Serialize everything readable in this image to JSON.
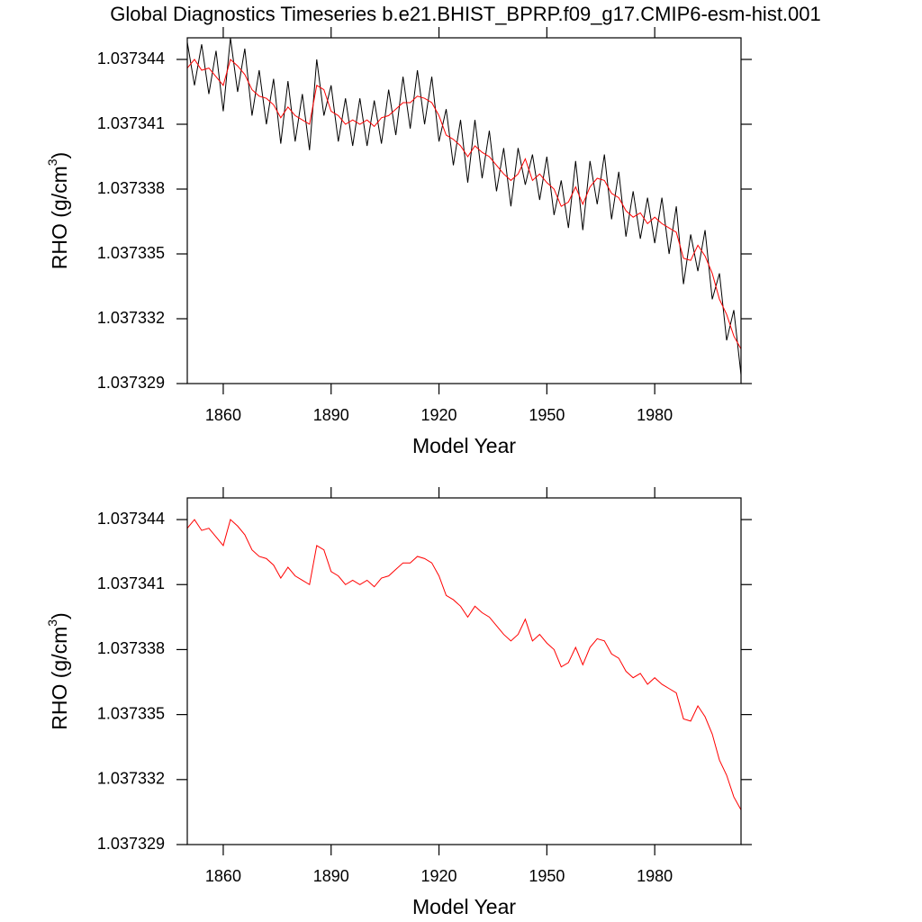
{
  "chart_data": [
    {
      "type": "line",
      "title": "Global Diagnostics Timeseries b.e21.BHIST_BPRP.f09_g17.CMIP6-esm-hist.001",
      "xlabel": "Model Year",
      "ylabel": [
        "RHO (g/cm",
        "3",
        ")"
      ],
      "xlim": [
        1850,
        2004
      ],
      "ylim": [
        1.037329,
        1.037345
      ],
      "xticks": [
        1860,
        1890,
        1920,
        1950,
        1980
      ],
      "yticks": [
        1.037329,
        1.037332,
        1.037335,
        1.037338,
        1.037341,
        1.037344
      ],
      "x": [
        1850,
        1852,
        1854,
        1856,
        1858,
        1860,
        1862,
        1864,
        1866,
        1868,
        1870,
        1872,
        1874,
        1876,
        1878,
        1880,
        1882,
        1884,
        1886,
        1888,
        1890,
        1892,
        1894,
        1896,
        1898,
        1900,
        1902,
        1904,
        1906,
        1908,
        1910,
        1912,
        1914,
        1916,
        1918,
        1920,
        1922,
        1924,
        1926,
        1928,
        1930,
        1932,
        1934,
        1936,
        1938,
        1940,
        1942,
        1944,
        1946,
        1948,
        1950,
        1952,
        1954,
        1956,
        1958,
        1960,
        1962,
        1964,
        1966,
        1968,
        1970,
        1972,
        1974,
        1976,
        1978,
        1980,
        1982,
        1984,
        1986,
        1988,
        1990,
        1992,
        1994,
        1996,
        1998,
        2000,
        2002,
        2004
      ],
      "series": [
        {
          "color": "#000000",
          "values": [
            1.0373448,
            1.0373428,
            1.0373447,
            1.0373424,
            1.0373444,
            1.0373416,
            1.037345,
            1.0373425,
            1.0373445,
            1.0373414,
            1.0373435,
            1.037341,
            1.0373431,
            1.0373401,
            1.037343,
            1.0373402,
            1.0373424,
            1.0373398,
            1.037344,
            1.0373414,
            1.0373428,
            1.0373402,
            1.0373422,
            1.03734,
            1.0373422,
            1.03734,
            1.0373421,
            1.0373401,
            1.0373426,
            1.0373405,
            1.0373432,
            1.0373408,
            1.0373435,
            1.037341,
            1.0373432,
            1.0373402,
            1.0373417,
            1.0373391,
            1.0373412,
            1.0373383,
            1.0373412,
            1.0373385,
            1.0373407,
            1.0373379,
            1.0373399,
            1.0373372,
            1.0373399,
            1.0373382,
            1.0373396,
            1.0373375,
            1.0373395,
            1.0373368,
            1.0373384,
            1.0373362,
            1.0373393,
            1.0373361,
            1.0373393,
            1.0373373,
            1.0373396,
            1.0373366,
            1.0373388,
            1.0373358,
            1.0373379,
            1.0373357,
            1.0373376,
            1.0373355,
            1.0373376,
            1.037335,
            1.0373372,
            1.0373336,
            1.0373359,
            1.0373342,
            1.0373361,
            1.0373329,
            1.0373341,
            1.037331,
            1.0373324,
            1.0373294
          ]
        },
        {
          "color": "#ff0000",
          "values": [
            1.0373436,
            1.037344,
            1.0373435,
            1.0373436,
            1.0373432,
            1.0373428,
            1.037344,
            1.0373437,
            1.0373433,
            1.0373426,
            1.0373423,
            1.0373422,
            1.0373419,
            1.0373413,
            1.0373418,
            1.0373414,
            1.0373412,
            1.037341,
            1.0373428,
            1.0373426,
            1.0373416,
            1.0373414,
            1.037341,
            1.0373412,
            1.037341,
            1.0373412,
            1.0373409,
            1.0373413,
            1.0373414,
            1.0373417,
            1.037342,
            1.037342,
            1.0373423,
            1.0373422,
            1.037342,
            1.0373414,
            1.0373405,
            1.0373403,
            1.03734,
            1.0373395,
            1.03734,
            1.0373397,
            1.0373395,
            1.0373391,
            1.0373387,
            1.0373384,
            1.0373387,
            1.0373394,
            1.0373384,
            1.0373387,
            1.0373383,
            1.037338,
            1.0373372,
            1.0373374,
            1.0373381,
            1.0373373,
            1.0373381,
            1.0373385,
            1.0373384,
            1.0373378,
            1.0373376,
            1.037337,
            1.0373367,
            1.0373369,
            1.0373364,
            1.0373367,
            1.0373364,
            1.0373362,
            1.037336,
            1.0373348,
            1.0373347,
            1.0373354,
            1.0373349,
            1.0373341,
            1.0373329,
            1.0373322,
            1.0373312,
            1.0373306
          ]
        }
      ]
    },
    {
      "type": "line",
      "xlabel": "Model Year",
      "ylabel": [
        "RHO (g/cm",
        "3",
        ")"
      ],
      "xlim": [
        1850,
        2004
      ],
      "ylim": [
        1.037329,
        1.037345
      ],
      "xticks": [
        1860,
        1890,
        1920,
        1950,
        1980
      ],
      "yticks": [
        1.037329,
        1.037332,
        1.037335,
        1.037338,
        1.037341,
        1.037344
      ],
      "x": [
        1850,
        1852,
        1854,
        1856,
        1858,
        1860,
        1862,
        1864,
        1866,
        1868,
        1870,
        1872,
        1874,
        1876,
        1878,
        1880,
        1882,
        1884,
        1886,
        1888,
        1890,
        1892,
        1894,
        1896,
        1898,
        1900,
        1902,
        1904,
        1906,
        1908,
        1910,
        1912,
        1914,
        1916,
        1918,
        1920,
        1922,
        1924,
        1926,
        1928,
        1930,
        1932,
        1934,
        1936,
        1938,
        1940,
        1942,
        1944,
        1946,
        1948,
        1950,
        1952,
        1954,
        1956,
        1958,
        1960,
        1962,
        1964,
        1966,
        1968,
        1970,
        1972,
        1974,
        1976,
        1978,
        1980,
        1982,
        1984,
        1986,
        1988,
        1990,
        1992,
        1994,
        1996,
        1998,
        2000,
        2002,
        2004
      ],
      "series": [
        {
          "color": "#ff0000",
          "values": [
            1.0373436,
            1.037344,
            1.0373435,
            1.0373436,
            1.0373432,
            1.0373428,
            1.037344,
            1.0373437,
            1.0373433,
            1.0373426,
            1.0373423,
            1.0373422,
            1.0373419,
            1.0373413,
            1.0373418,
            1.0373414,
            1.0373412,
            1.037341,
            1.0373428,
            1.0373426,
            1.0373416,
            1.0373414,
            1.037341,
            1.0373412,
            1.037341,
            1.0373412,
            1.0373409,
            1.0373413,
            1.0373414,
            1.0373417,
            1.037342,
            1.037342,
            1.0373423,
            1.0373422,
            1.037342,
            1.0373414,
            1.0373405,
            1.0373403,
            1.03734,
            1.0373395,
            1.03734,
            1.0373397,
            1.0373395,
            1.0373391,
            1.0373387,
            1.0373384,
            1.0373387,
            1.0373394,
            1.0373384,
            1.0373387,
            1.0373383,
            1.037338,
            1.0373372,
            1.0373374,
            1.0373381,
            1.0373373,
            1.0373381,
            1.0373385,
            1.0373384,
            1.0373378,
            1.0373376,
            1.037337,
            1.0373367,
            1.0373369,
            1.0373364,
            1.0373367,
            1.0373364,
            1.0373362,
            1.037336,
            1.0373348,
            1.0373347,
            1.0373354,
            1.0373349,
            1.0373341,
            1.0373329,
            1.0373322,
            1.0373312,
            1.0373306
          ]
        }
      ]
    }
  ]
}
